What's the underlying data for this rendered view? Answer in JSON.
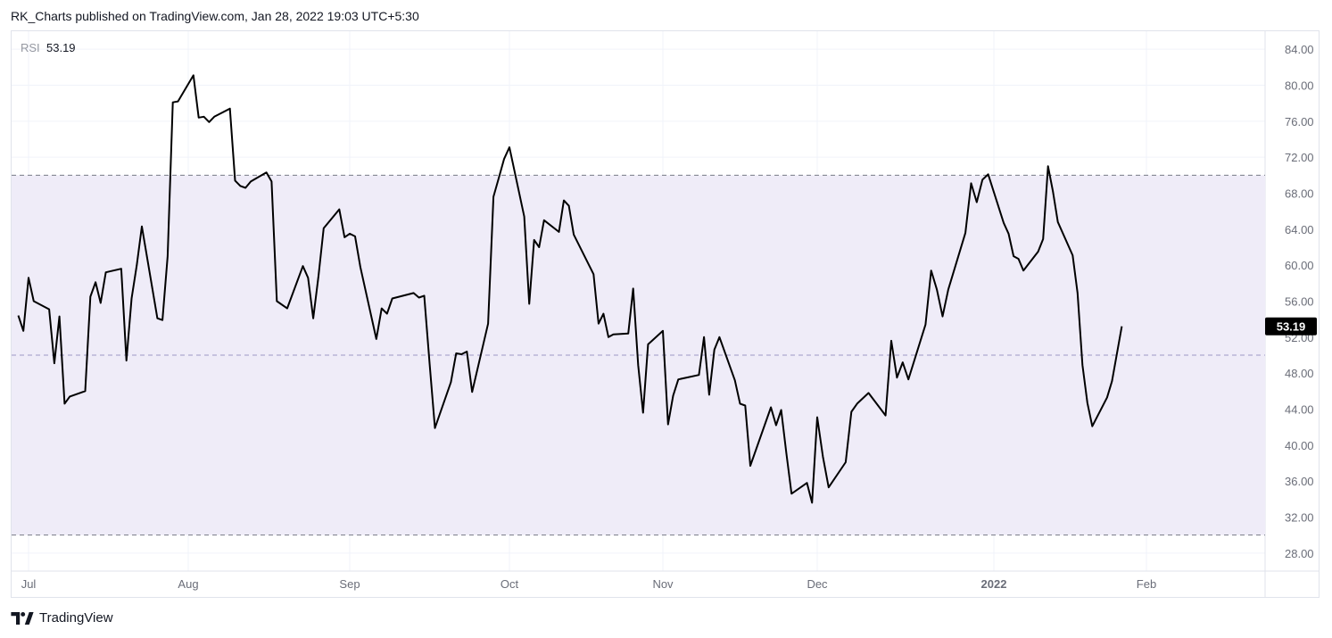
{
  "header": {
    "text": "RK_Charts published on TradingView.com, Jan 28, 2022 19:03 UTC+5:30"
  },
  "footer": {
    "brand": "TradingView",
    "logo_icon": "tradingview-logo-icon"
  },
  "legend": {
    "key": "RSI",
    "value": "53.19"
  },
  "colors": {
    "line": "#000000",
    "band_fill": "#efecf8",
    "band_border": "#787b86",
    "mid_line": "#9c99c6",
    "grid": "#f0f3fa",
    "price_label_bg": "#000000",
    "price_label_text": "#ffffff",
    "axis_text": "#6a6d78"
  },
  "chart_data": {
    "type": "line",
    "legend_placement": "top-left",
    "grid": true,
    "ylim": [
      26,
      86
    ],
    "y_ticks": [
      "28.00",
      "32.00",
      "36.00",
      "40.00",
      "44.00",
      "48.00",
      "52.00",
      "56.00",
      "60.00",
      "64.00",
      "68.00",
      "72.00",
      "76.00",
      "80.00",
      "84.00"
    ],
    "bands": {
      "upper": 70,
      "middle": 50,
      "lower": 30
    },
    "x_ticks": [
      {
        "label": "Jul",
        "date": "2021-07-01",
        "bold": false
      },
      {
        "label": "Aug",
        "date": "2021-08-01",
        "bold": false
      },
      {
        "label": "Sep",
        "date": "2021-09-01",
        "bold": false
      },
      {
        "label": "Oct",
        "date": "2021-10-01",
        "bold": false
      },
      {
        "label": "Nov",
        "date": "2021-11-01",
        "bold": false
      },
      {
        "label": "Dec",
        "date": "2021-12-01",
        "bold": false
      },
      {
        "label": "2022",
        "date": "2022-01-01",
        "bold": true
      },
      {
        "label": "Feb",
        "date": "2022-02-01",
        "bold": false
      }
    ],
    "last_value": "53.19",
    "series": [
      {
        "values": [
          [
            "2021-06-29",
            54.4
          ],
          [
            "2021-06-30",
            52.7
          ],
          [
            "2021-07-01",
            58.6
          ],
          [
            "2021-07-02",
            56.0
          ],
          [
            "2021-07-05",
            55.1
          ],
          [
            "2021-07-06",
            49.1
          ],
          [
            "2021-07-07",
            54.3
          ],
          [
            "2021-07-08",
            44.6
          ],
          [
            "2021-07-09",
            45.4
          ],
          [
            "2021-07-12",
            46.0
          ],
          [
            "2021-07-13",
            56.5
          ],
          [
            "2021-07-14",
            58.1
          ],
          [
            "2021-07-15",
            55.8
          ],
          [
            "2021-07-16",
            59.2
          ],
          [
            "2021-07-19",
            59.6
          ],
          [
            "2021-07-20",
            49.4
          ],
          [
            "2021-07-21",
            56.3
          ],
          [
            "2021-07-22",
            60.0
          ],
          [
            "2021-07-23",
            64.3
          ],
          [
            "2021-07-26",
            54.1
          ],
          [
            "2021-07-27",
            53.9
          ],
          [
            "2021-07-28",
            61.0
          ],
          [
            "2021-07-29",
            78.1
          ],
          [
            "2021-07-30",
            78.2
          ],
          [
            "2021-08-02",
            81.1
          ],
          [
            "2021-08-03",
            76.4
          ],
          [
            "2021-08-04",
            76.5
          ],
          [
            "2021-08-05",
            75.9
          ],
          [
            "2021-08-06",
            76.5
          ],
          [
            "2021-08-09",
            77.4
          ],
          [
            "2021-08-10",
            69.4
          ],
          [
            "2021-08-11",
            68.8
          ],
          [
            "2021-08-12",
            68.6
          ],
          [
            "2021-08-13",
            69.3
          ],
          [
            "2021-08-16",
            70.3
          ],
          [
            "2021-08-17",
            69.3
          ],
          [
            "2021-08-18",
            56.0
          ],
          [
            "2021-08-20",
            55.2
          ],
          [
            "2021-08-23",
            59.9
          ],
          [
            "2021-08-24",
            58.6
          ],
          [
            "2021-08-25",
            54.1
          ],
          [
            "2021-08-26",
            58.8
          ],
          [
            "2021-08-27",
            64.1
          ],
          [
            "2021-08-30",
            66.2
          ],
          [
            "2021-08-31",
            63.1
          ],
          [
            "2021-09-01",
            63.5
          ],
          [
            "2021-09-02",
            63.2
          ],
          [
            "2021-09-03",
            59.8
          ],
          [
            "2021-09-06",
            51.8
          ],
          [
            "2021-09-07",
            55.2
          ],
          [
            "2021-09-08",
            54.6
          ],
          [
            "2021-09-09",
            56.3
          ],
          [
            "2021-09-13",
            56.9
          ],
          [
            "2021-09-14",
            56.4
          ],
          [
            "2021-09-15",
            56.6
          ],
          [
            "2021-09-16",
            49.1
          ],
          [
            "2021-09-17",
            41.9
          ],
          [
            "2021-09-20",
            47.0
          ],
          [
            "2021-09-21",
            50.2
          ],
          [
            "2021-09-22",
            50.1
          ],
          [
            "2021-09-23",
            50.4
          ],
          [
            "2021-09-24",
            45.9
          ],
          [
            "2021-09-27",
            53.5
          ],
          [
            "2021-09-28",
            67.6
          ],
          [
            "2021-09-29",
            69.7
          ],
          [
            "2021-09-30",
            71.8
          ],
          [
            "2021-10-01",
            73.1
          ],
          [
            "2021-10-04",
            65.4
          ],
          [
            "2021-10-05",
            55.7
          ],
          [
            "2021-10-06",
            62.8
          ],
          [
            "2021-10-07",
            62.0
          ],
          [
            "2021-10-08",
            65.0
          ],
          [
            "2021-10-11",
            63.7
          ],
          [
            "2021-10-12",
            67.2
          ],
          [
            "2021-10-13",
            66.6
          ],
          [
            "2021-10-14",
            63.4
          ],
          [
            "2021-10-18",
            59.0
          ],
          [
            "2021-10-19",
            53.5
          ],
          [
            "2021-10-20",
            54.6
          ],
          [
            "2021-10-21",
            52.0
          ],
          [
            "2021-10-22",
            52.3
          ],
          [
            "2021-10-25",
            52.4
          ],
          [
            "2021-10-26",
            57.4
          ],
          [
            "2021-10-27",
            48.9
          ],
          [
            "2021-10-28",
            43.6
          ],
          [
            "2021-10-29",
            51.2
          ],
          [
            "2021-11-01",
            52.7
          ],
          [
            "2021-11-02",
            42.3
          ],
          [
            "2021-11-03",
            45.5
          ],
          [
            "2021-11-04",
            47.3
          ],
          [
            "2021-11-08",
            47.8
          ],
          [
            "2021-11-09",
            52.0
          ],
          [
            "2021-11-10",
            45.6
          ],
          [
            "2021-11-11",
            50.6
          ],
          [
            "2021-11-12",
            52.0
          ],
          [
            "2021-11-15",
            47.2
          ],
          [
            "2021-11-16",
            44.6
          ],
          [
            "2021-11-17",
            44.4
          ],
          [
            "2021-11-18",
            37.7
          ],
          [
            "2021-11-22",
            44.2
          ],
          [
            "2021-11-23",
            42.2
          ],
          [
            "2021-11-24",
            43.9
          ],
          [
            "2021-11-25",
            39.1
          ],
          [
            "2021-11-26",
            34.6
          ],
          [
            "2021-11-29",
            35.8
          ],
          [
            "2021-11-30",
            33.6
          ],
          [
            "2021-12-01",
            43.1
          ],
          [
            "2021-12-02",
            38.7
          ],
          [
            "2021-12-03",
            35.3
          ],
          [
            "2021-12-06",
            38.1
          ],
          [
            "2021-12-07",
            43.7
          ],
          [
            "2021-12-08",
            44.6
          ],
          [
            "2021-12-09",
            45.2
          ],
          [
            "2021-12-10",
            45.8
          ],
          [
            "2021-12-13",
            43.3
          ],
          [
            "2021-12-14",
            51.6
          ],
          [
            "2021-12-15",
            47.5
          ],
          [
            "2021-12-16",
            49.2
          ],
          [
            "2021-12-17",
            47.3
          ],
          [
            "2021-12-20",
            53.4
          ],
          [
            "2021-12-21",
            59.4
          ],
          [
            "2021-12-22",
            57.3
          ],
          [
            "2021-12-23",
            54.3
          ],
          [
            "2021-12-24",
            57.3
          ],
          [
            "2021-12-27",
            63.6
          ],
          [
            "2021-12-28",
            69.1
          ],
          [
            "2021-12-29",
            67.0
          ],
          [
            "2021-12-30",
            69.5
          ],
          [
            "2021-12-31",
            70.1
          ],
          [
            "2022-01-03",
            64.7
          ],
          [
            "2022-01-04",
            63.5
          ],
          [
            "2022-01-05",
            61.0
          ],
          [
            "2022-01-06",
            60.7
          ],
          [
            "2022-01-07",
            59.4
          ],
          [
            "2022-01-10",
            61.5
          ],
          [
            "2022-01-11",
            62.9
          ],
          [
            "2022-01-12",
            71.0
          ],
          [
            "2022-01-13",
            68.2
          ],
          [
            "2022-01-14",
            64.8
          ],
          [
            "2022-01-17",
            61.1
          ],
          [
            "2022-01-18",
            56.9
          ],
          [
            "2022-01-19",
            48.9
          ],
          [
            "2022-01-20",
            44.7
          ],
          [
            "2022-01-21",
            42.1
          ],
          [
            "2022-01-24",
            45.3
          ],
          [
            "2022-01-25",
            47.1
          ],
          [
            "2022-01-27",
            53.2
          ]
        ]
      }
    ]
  }
}
